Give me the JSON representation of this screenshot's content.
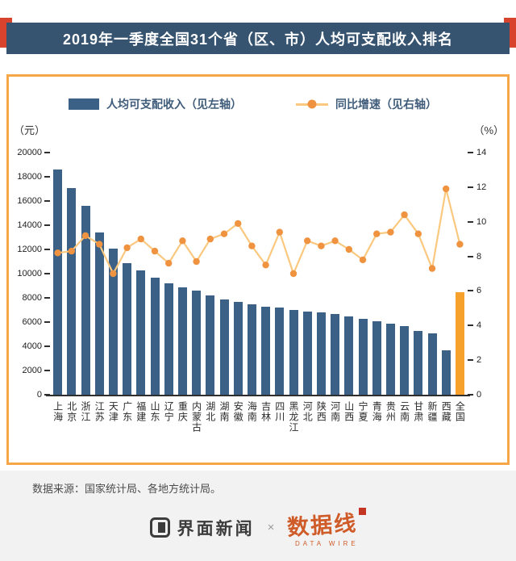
{
  "title_bar": {
    "title": "2019年一季度全国31个省（区、市）人均可支配收入排名"
  },
  "footer": {
    "source": "数据来源：国家统计局、各地方统计局。",
    "jiemian_logo": "界面新闻",
    "separator": "×",
    "datawire_logo": "数据线",
    "datawire_subtitle": "DATA WIRE"
  },
  "chart_data": {
    "type": "bar",
    "combo": "bar+line",
    "title": "2019年一季度全国31个省（区、市）人均可支配收入排名",
    "grid": false,
    "legend_position": "top",
    "categories": [
      "上海",
      "北京",
      "浙江",
      "江苏",
      "天津",
      "广东",
      "福建",
      "山东",
      "辽宁",
      "重庆",
      "内蒙古",
      "湖北",
      "湖南",
      "安徽",
      "海南",
      "吉林",
      "四川",
      "黑龙江",
      "河北",
      "陕西",
      "河南",
      "山西",
      "宁夏",
      "青海",
      "贵州",
      "云南",
      "甘肃",
      "新疆",
      "西藏",
      "全国"
    ],
    "series": [
      {
        "name": "人均可支配收入（见左轴）",
        "type": "bar",
        "axis": "left",
        "unit": "元",
        "values": [
          18600,
          17100,
          15600,
          13400,
          12100,
          10900,
          10300,
          9700,
          9200,
          8900,
          8600,
          8200,
          7900,
          7700,
          7500,
          7300,
          7200,
          7000,
          6900,
          6800,
          6700,
          6500,
          6300,
          6100,
          5900,
          5700,
          5300,
          5100,
          3700,
          8500
        ]
      },
      {
        "name": "同比增速（见右轴）",
        "type": "line",
        "axis": "right",
        "unit": "%",
        "values": [
          8.2,
          8.3,
          9.2,
          8.7,
          7.0,
          8.5,
          9.0,
          8.3,
          7.6,
          8.9,
          7.7,
          9.0,
          9.3,
          9.9,
          8.6,
          7.5,
          9.4,
          7.0,
          8.9,
          8.6,
          8.9,
          8.4,
          7.8,
          9.3,
          9.4,
          10.4,
          9.3,
          7.3,
          11.9,
          8.7
        ]
      }
    ],
    "left_axis": {
      "label": "（元）",
      "min": 0,
      "max": 20000,
      "step": 2000
    },
    "right_axis": {
      "label": "（%）",
      "min": 0,
      "max": 14,
      "step": 2
    },
    "highlight_category": "全国",
    "colors": {
      "bar": "#3b6186",
      "bar_highlight": "#f5a12b",
      "line": "#fac87f",
      "marker": "#ef9340"
    }
  }
}
